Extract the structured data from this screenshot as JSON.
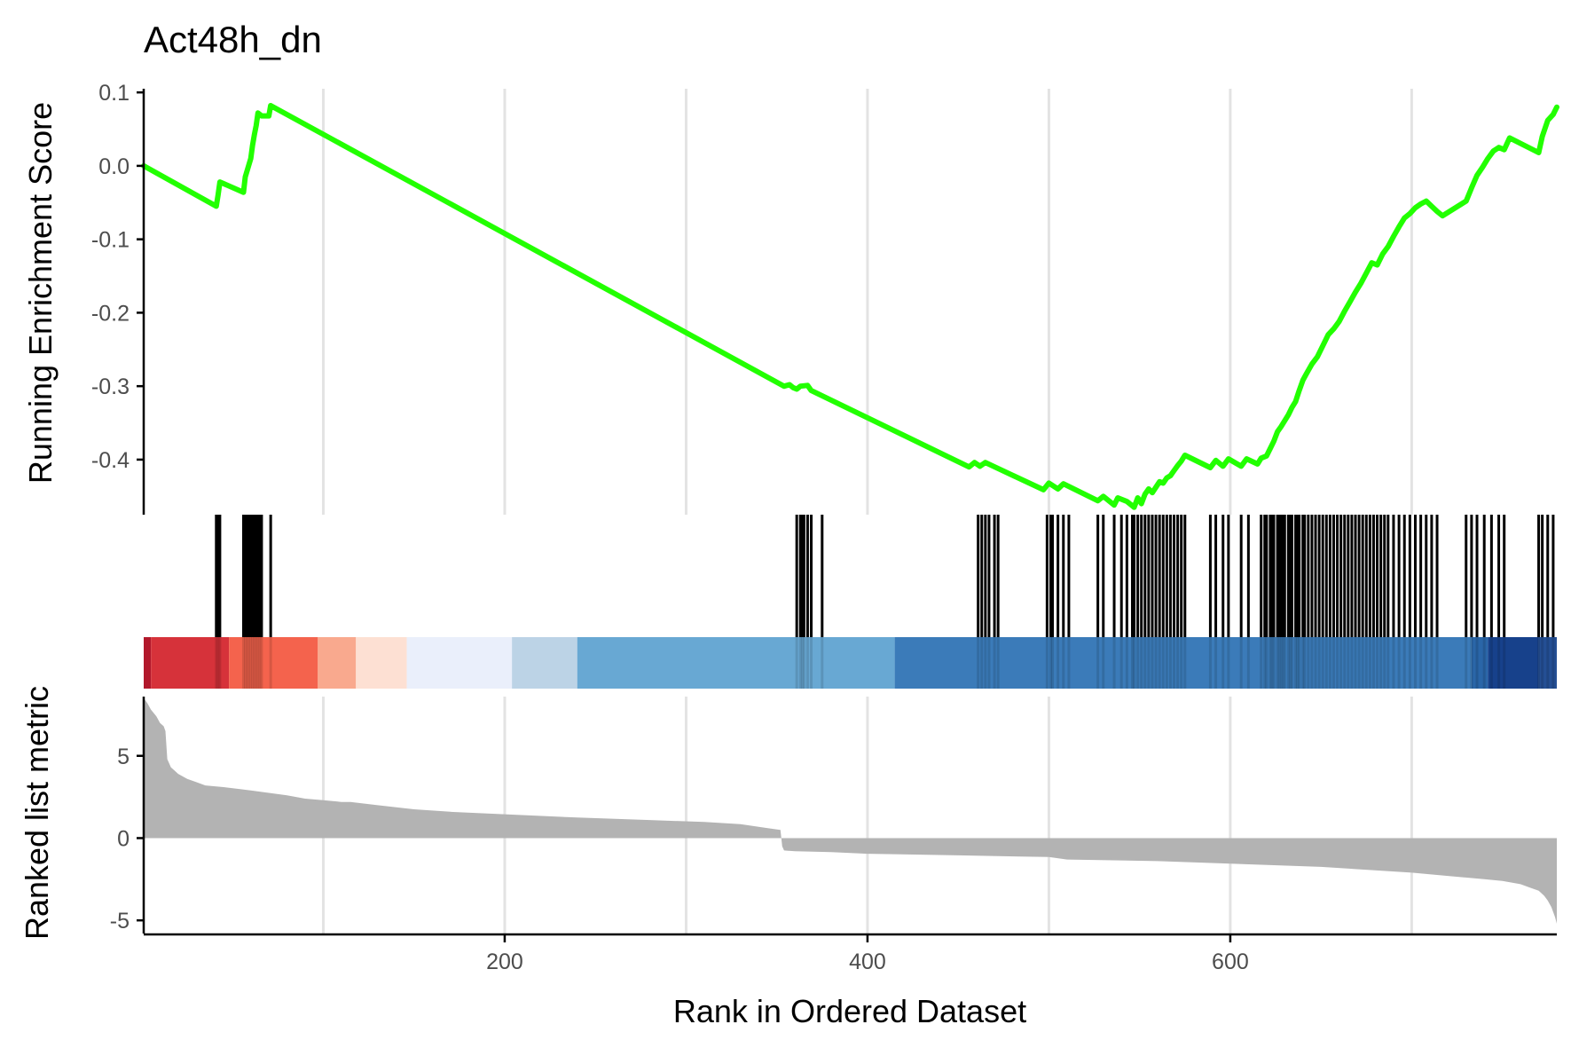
{
  "chart_data": {
    "type": "line",
    "title": "Act48h_dn",
    "xlabel": "Rank in Ordered Dataset",
    "xlim": [
      1,
      780
    ],
    "x_ticks": [
      "200",
      "400",
      "600"
    ],
    "grid_x": [
      100,
      200,
      300,
      400,
      500,
      600,
      700
    ],
    "running_es": {
      "ylabel": "Running Enrichment Score",
      "ylim": [
        -0.475,
        0.105
      ],
      "y_ticks": [
        "0.1",
        "0.0",
        "-0.1",
        "-0.2",
        "-0.3",
        "-0.4"
      ],
      "color": "#22ff00",
      "x": [
        1,
        41,
        42,
        43,
        56,
        57,
        60,
        61,
        62,
        63,
        64,
        65,
        66,
        70,
        71,
        354,
        357,
        359,
        361,
        363,
        367,
        369,
        456,
        459,
        462,
        465,
        497,
        500,
        505,
        508,
        527,
        530,
        536,
        538,
        543,
        547,
        549,
        551,
        553,
        555,
        557,
        561,
        563,
        565,
        567,
        569,
        571,
        573,
        574,
        575,
        589,
        592,
        596,
        599,
        606,
        609,
        615,
        617,
        620,
        622,
        624,
        626,
        628,
        630,
        632,
        634,
        636,
        638,
        640,
        642,
        645,
        648,
        651,
        654,
        657,
        660,
        663,
        666,
        669,
        672,
        675,
        678,
        681,
        684,
        687,
        690,
        693,
        696,
        699,
        702,
        705,
        708,
        711,
        714,
        717,
        730,
        733,
        736,
        739,
        742,
        745,
        748,
        751,
        754,
        770,
        772,
        775,
        778,
        780
      ],
      "y": [
        0.0,
        -0.055,
        -0.04,
        -0.022,
        -0.036,
        -0.015,
        0.01,
        0.028,
        0.042,
        0.055,
        0.072,
        0.07,
        0.068,
        0.068,
        0.082,
        -0.3,
        -0.298,
        -0.302,
        -0.304,
        -0.3,
        -0.299,
        -0.306,
        -0.41,
        -0.404,
        -0.409,
        -0.404,
        -0.441,
        -0.432,
        -0.44,
        -0.433,
        -0.456,
        -0.45,
        -0.462,
        -0.452,
        -0.457,
        -0.465,
        -0.452,
        -0.46,
        -0.447,
        -0.44,
        -0.445,
        -0.43,
        -0.432,
        -0.425,
        -0.422,
        -0.415,
        -0.408,
        -0.402,
        -0.398,
        -0.394,
        -0.411,
        -0.401,
        -0.409,
        -0.399,
        -0.409,
        -0.399,
        -0.406,
        -0.398,
        -0.395,
        -0.385,
        -0.375,
        -0.362,
        -0.355,
        -0.347,
        -0.339,
        -0.329,
        -0.321,
        -0.306,
        -0.292,
        -0.283,
        -0.27,
        -0.26,
        -0.245,
        -0.23,
        -0.222,
        -0.212,
        -0.198,
        -0.185,
        -0.172,
        -0.16,
        -0.146,
        -0.132,
        -0.135,
        -0.12,
        -0.11,
        -0.096,
        -0.083,
        -0.071,
        -0.065,
        -0.057,
        -0.052,
        -0.048,
        -0.055,
        -0.062,
        -0.068,
        -0.048,
        -0.03,
        -0.013,
        -0.002,
        0.01,
        0.02,
        0.025,
        0.022,
        0.038,
        0.018,
        0.04,
        0.062,
        0.07,
        0.08
      ]
    },
    "hit_positions": [
      41,
      42,
      43,
      56,
      57,
      58,
      59,
      60,
      61,
      62,
      63,
      64,
      65,
      66,
      71,
      361,
      363,
      364,
      365,
      367,
      369,
      375,
      461,
      463,
      465,
      467,
      470,
      472,
      499,
      501,
      502,
      505,
      508,
      511,
      527,
      530,
      536,
      540,
      543,
      546,
      547,
      549,
      551,
      553,
      555,
      557,
      559,
      561,
      563,
      565,
      567,
      569,
      571,
      573,
      575,
      589,
      592,
      596,
      599,
      606,
      610,
      617,
      619,
      620,
      622,
      623,
      624,
      626,
      627,
      628,
      629,
      630,
      632,
      633,
      634,
      636,
      637,
      638,
      640,
      641,
      643,
      645,
      647,
      649,
      651,
      653,
      655,
      657,
      659,
      661,
      663,
      665,
      667,
      669,
      671,
      673,
      675,
      677,
      679,
      681,
      683,
      685,
      687,
      690,
      693,
      696,
      699,
      702,
      705,
      708,
      711,
      714,
      730,
      733,
      736,
      740,
      744,
      748,
      751,
      770,
      772,
      775,
      778
    ],
    "color_bar": {
      "segments": [
        {
          "x0": 1,
          "x1": 5,
          "color": "#b2182b"
        },
        {
          "x0": 5,
          "x1": 48,
          "color": "#d6323a"
        },
        {
          "x0": 48,
          "x1": 97,
          "color": "#f4634d"
        },
        {
          "x0": 97,
          "x1": 118,
          "color": "#f9a98e"
        },
        {
          "x0": 118,
          "x1": 146,
          "color": "#fde0d3"
        },
        {
          "x0": 146,
          "x1": 204,
          "color": "#eaeffb"
        },
        {
          "x0": 204,
          "x1": 240,
          "color": "#bcd3e6"
        },
        {
          "x0": 240,
          "x1": 415,
          "color": "#68a8d3"
        },
        {
          "x0": 415,
          "x1": 733,
          "color": "#3b7bb9"
        },
        {
          "x0": 733,
          "x1": 742,
          "color": "#2a66a8"
        },
        {
          "x0": 742,
          "x1": 770,
          "color": "#17418b"
        },
        {
          "x0": 770,
          "x1": 780,
          "color": "#244f94"
        }
      ]
    },
    "ranked_metric": {
      "ylabel": "Ranked list metric",
      "ylim": [
        -5.8,
        8.6
      ],
      "y_ticks": [
        5,
        0,
        -5
      ],
      "color": "#b3b3b3",
      "x": [
        1,
        3,
        5,
        8,
        10,
        12,
        13,
        14,
        16,
        18,
        20,
        25,
        30,
        35,
        45,
        60,
        80,
        90,
        100,
        110,
        115,
        130,
        150,
        170,
        200,
        240,
        280,
        310,
        330,
        345,
        352,
        353,
        354,
        360,
        380,
        400,
        450,
        500,
        510,
        560,
        600,
        650,
        700,
        720,
        740,
        750,
        760,
        765,
        770,
        773,
        775,
        777,
        779,
        780
      ],
      "y": [
        8.5,
        8.2,
        7.8,
        7.4,
        7.0,
        6.8,
        6.5,
        4.8,
        4.3,
        4.1,
        3.9,
        3.6,
        3.4,
        3.2,
        3.1,
        2.9,
        2.6,
        2.4,
        2.3,
        2.2,
        2.2,
        2.0,
        1.75,
        1.6,
        1.45,
        1.25,
        1.1,
        0.98,
        0.85,
        0.6,
        0.5,
        -0.5,
        -0.75,
        -0.8,
        -0.85,
        -0.95,
        -1.05,
        -1.15,
        -1.3,
        -1.4,
        -1.55,
        -1.75,
        -2.1,
        -2.3,
        -2.5,
        -2.6,
        -2.8,
        -3.0,
        -3.2,
        -3.5,
        -3.8,
        -4.2,
        -4.8,
        -5.2
      ]
    }
  }
}
